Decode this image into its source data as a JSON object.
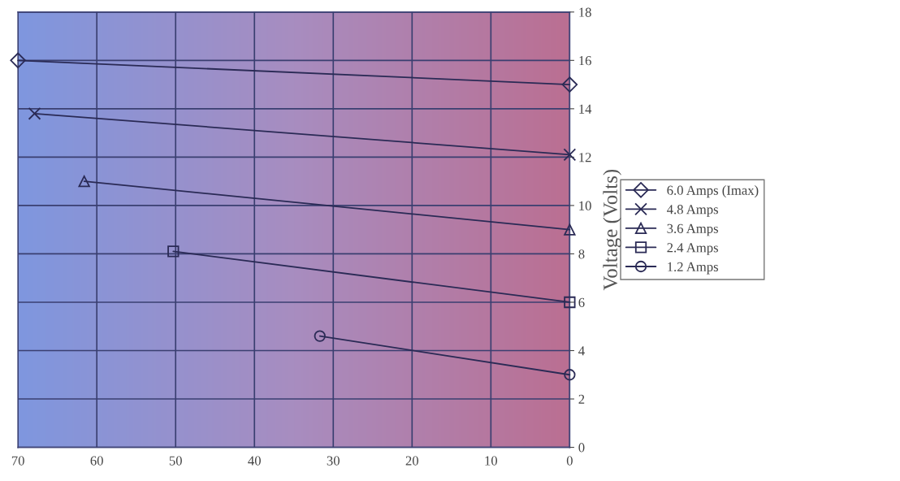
{
  "chart_data": {
    "type": "line",
    "ylabel": "Voltage (Volts)",
    "xlim": [
      70,
      0
    ],
    "xticks": [
      70,
      60,
      50,
      40,
      30,
      20,
      10,
      0
    ],
    "ylim": [
      0,
      18
    ],
    "yticks": [
      0,
      2,
      4,
      6,
      8,
      10,
      12,
      14,
      16,
      18
    ],
    "grid": true,
    "legend": "right",
    "series": [
      {
        "name": "6.0 Amps (Imax)",
        "color": "#2a2a55",
        "marker": "diamond",
        "x": [
          70,
          0
        ],
        "values": [
          16,
          15
        ]
      },
      {
        "name": "4.8 Amps",
        "color": "#2a2a55",
        "marker": "cross",
        "x": [
          67.9,
          0
        ],
        "values": [
          13.8,
          12.1
        ]
      },
      {
        "name": "3.6 Amps",
        "color": "#2a2a55",
        "marker": "triangle",
        "x": [
          61.6,
          0
        ],
        "values": [
          11,
          9
        ]
      },
      {
        "name": "2.4 Amps",
        "color": "#2a2a55",
        "marker": "square",
        "x": [
          50.3,
          0
        ],
        "values": [
          8.1,
          6
        ]
      },
      {
        "name": "1.2 Amps",
        "color": "#2a2a55",
        "marker": "circle",
        "x": [
          31.7,
          0
        ],
        "values": [
          4.6,
          3
        ]
      }
    ]
  }
}
